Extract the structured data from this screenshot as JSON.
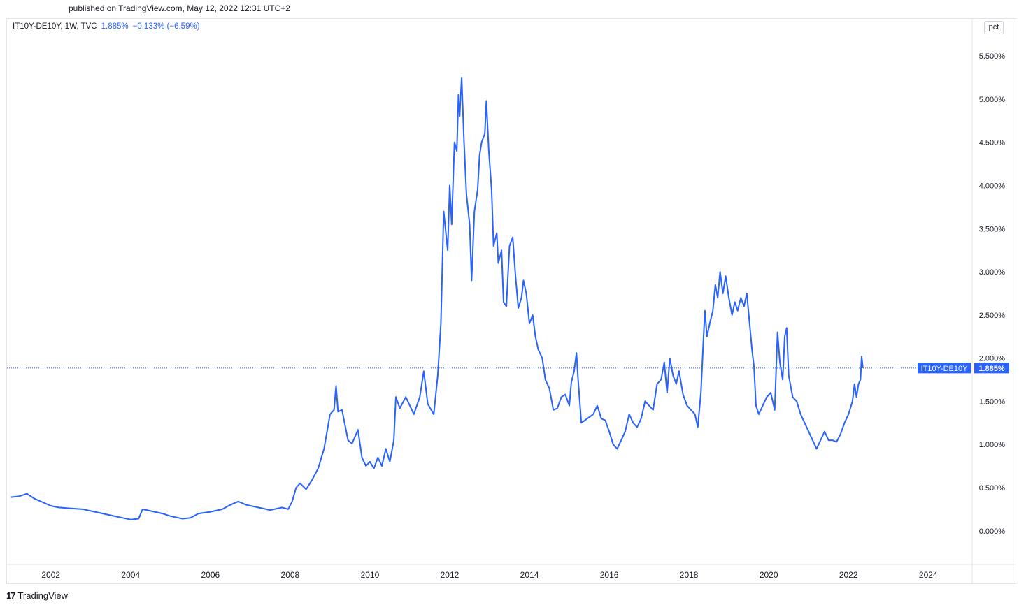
{
  "header": {
    "published": "published on TradingView.com, May 12, 2022 12:31 UTC+2"
  },
  "legend": {
    "symbol": "IT10Y-DE10Y, 1W, TVC",
    "value": "1.885%",
    "change": "−0.133% (−6.59%)"
  },
  "unit_button": {
    "label": "pct"
  },
  "footer": {
    "brand": "TradingView",
    "logo_icon": "tradingview-logo-icon"
  },
  "colors": {
    "line": "#2962ff",
    "axis_text": "#131722",
    "label_bg": "#2962ff",
    "border": "#e0e3eb"
  },
  "chart_data": {
    "type": "line",
    "title": "",
    "xlabel": "",
    "ylabel": "",
    "x_tick_labels": [
      "2002",
      "2004",
      "2006",
      "2008",
      "2010",
      "2012",
      "2014",
      "2016",
      "2018",
      "2020",
      "2022",
      "2024"
    ],
    "y_tick_labels": [
      "0.000%",
      "0.500%",
      "1.000%",
      "1.500%",
      "2.000%",
      "2.500%",
      "3.000%",
      "3.500%",
      "4.000%",
      "4.500%",
      "5.000%",
      "5.500%"
    ],
    "y_ticks": [
      0,
      0.5,
      1.0,
      1.5,
      2.0,
      2.5,
      3.0,
      3.5,
      4.0,
      4.5,
      5.0,
      5.5
    ],
    "x_range": [
      2000.9,
      2025.1
    ],
    "ylim": [
      -0.39,
      5.93
    ],
    "grid": false,
    "last_value": 1.885,
    "last_value_label": "1.885%",
    "series": [
      {
        "name": "IT10Y-DE10Y",
        "points": [
          [
            2001.0,
            0.39
          ],
          [
            2001.2,
            0.4
          ],
          [
            2001.4,
            0.43
          ],
          [
            2001.6,
            0.37
          ],
          [
            2001.8,
            0.33
          ],
          [
            2002.0,
            0.29
          ],
          [
            2002.2,
            0.27
          ],
          [
            2002.5,
            0.26
          ],
          [
            2002.8,
            0.25
          ],
          [
            2003.0,
            0.23
          ],
          [
            2003.3,
            0.2
          ],
          [
            2003.5,
            0.18
          ],
          [
            2003.8,
            0.15
          ],
          [
            2004.0,
            0.13
          ],
          [
            2004.2,
            0.14
          ],
          [
            2004.3,
            0.25
          ],
          [
            2004.5,
            0.23
          ],
          [
            2004.8,
            0.2
          ],
          [
            2005.0,
            0.17
          ],
          [
            2005.3,
            0.14
          ],
          [
            2005.5,
            0.15
          ],
          [
            2005.7,
            0.2
          ],
          [
            2006.0,
            0.22
          ],
          [
            2006.3,
            0.25
          ],
          [
            2006.5,
            0.3
          ],
          [
            2006.7,
            0.34
          ],
          [
            2006.9,
            0.3
          ],
          [
            2007.2,
            0.27
          ],
          [
            2007.5,
            0.24
          ],
          [
            2007.8,
            0.27
          ],
          [
            2007.95,
            0.25
          ],
          [
            2008.05,
            0.34
          ],
          [
            2008.15,
            0.5
          ],
          [
            2008.25,
            0.55
          ],
          [
            2008.4,
            0.48
          ],
          [
            2008.55,
            0.59
          ],
          [
            2008.7,
            0.72
          ],
          [
            2008.85,
            0.95
          ],
          [
            2009.0,
            1.35
          ],
          [
            2009.1,
            1.4
          ],
          [
            2009.15,
            1.68
          ],
          [
            2009.2,
            1.38
          ],
          [
            2009.3,
            1.4
          ],
          [
            2009.45,
            1.05
          ],
          [
            2009.55,
            1.01
          ],
          [
            2009.7,
            1.17
          ],
          [
            2009.8,
            0.85
          ],
          [
            2009.9,
            0.75
          ],
          [
            2010.0,
            0.8
          ],
          [
            2010.1,
            0.72
          ],
          [
            2010.2,
            0.85
          ],
          [
            2010.3,
            0.75
          ],
          [
            2010.4,
            0.95
          ],
          [
            2010.5,
            0.8
          ],
          [
            2010.6,
            1.05
          ],
          [
            2010.65,
            1.55
          ],
          [
            2010.75,
            1.42
          ],
          [
            2010.9,
            1.55
          ],
          [
            2011.0,
            1.45
          ],
          [
            2011.1,
            1.35
          ],
          [
            2011.25,
            1.55
          ],
          [
            2011.35,
            1.85
          ],
          [
            2011.45,
            1.47
          ],
          [
            2011.6,
            1.35
          ],
          [
            2011.7,
            1.8
          ],
          [
            2011.78,
            2.4
          ],
          [
            2011.85,
            3.7
          ],
          [
            2011.95,
            3.25
          ],
          [
            2012.0,
            4.0
          ],
          [
            2012.05,
            3.55
          ],
          [
            2012.12,
            4.5
          ],
          [
            2012.18,
            4.4
          ],
          [
            2012.22,
            5.05
          ],
          [
            2012.25,
            4.8
          ],
          [
            2012.3,
            5.25
          ],
          [
            2012.36,
            4.5
          ],
          [
            2012.42,
            3.9
          ],
          [
            2012.5,
            3.55
          ],
          [
            2012.55,
            2.9
          ],
          [
            2012.62,
            3.7
          ],
          [
            2012.7,
            3.95
          ],
          [
            2012.75,
            4.35
          ],
          [
            2012.8,
            4.5
          ],
          [
            2012.88,
            4.6
          ],
          [
            2012.92,
            4.98
          ],
          [
            2012.98,
            4.4
          ],
          [
            2013.05,
            3.95
          ],
          [
            2013.1,
            3.3
          ],
          [
            2013.18,
            3.45
          ],
          [
            2013.22,
            3.1
          ],
          [
            2013.3,
            3.25
          ],
          [
            2013.35,
            2.65
          ],
          [
            2013.42,
            2.6
          ],
          [
            2013.5,
            3.3
          ],
          [
            2013.58,
            3.4
          ],
          [
            2013.65,
            2.95
          ],
          [
            2013.72,
            2.58
          ],
          [
            2013.8,
            2.7
          ],
          [
            2013.85,
            2.9
          ],
          [
            2013.92,
            2.75
          ],
          [
            2014.0,
            2.4
          ],
          [
            2014.08,
            2.5
          ],
          [
            2014.15,
            2.25
          ],
          [
            2014.22,
            2.1
          ],
          [
            2014.32,
            2.0
          ],
          [
            2014.4,
            1.75
          ],
          [
            2014.5,
            1.65
          ],
          [
            2014.6,
            1.4
          ],
          [
            2014.7,
            1.42
          ],
          [
            2014.8,
            1.55
          ],
          [
            2014.9,
            1.58
          ],
          [
            2015.0,
            1.45
          ],
          [
            2015.05,
            1.72
          ],
          [
            2015.12,
            1.85
          ],
          [
            2015.18,
            2.06
          ],
          [
            2015.22,
            1.75
          ],
          [
            2015.3,
            1.25
          ],
          [
            2015.45,
            1.3
          ],
          [
            2015.6,
            1.35
          ],
          [
            2015.7,
            1.45
          ],
          [
            2015.8,
            1.3
          ],
          [
            2015.9,
            1.28
          ],
          [
            2016.0,
            1.15
          ],
          [
            2016.1,
            1.0
          ],
          [
            2016.2,
            0.95
          ],
          [
            2016.3,
            1.05
          ],
          [
            2016.4,
            1.15
          ],
          [
            2016.5,
            1.35
          ],
          [
            2016.6,
            1.25
          ],
          [
            2016.7,
            1.2
          ],
          [
            2016.8,
            1.3
          ],
          [
            2016.9,
            1.5
          ],
          [
            2017.0,
            1.45
          ],
          [
            2017.1,
            1.4
          ],
          [
            2017.2,
            1.7
          ],
          [
            2017.3,
            1.75
          ],
          [
            2017.38,
            1.95
          ],
          [
            2017.45,
            1.6
          ],
          [
            2017.52,
            2.0
          ],
          [
            2017.6,
            1.8
          ],
          [
            2017.68,
            1.7
          ],
          [
            2017.75,
            1.85
          ],
          [
            2017.85,
            1.58
          ],
          [
            2017.95,
            1.45
          ],
          [
            2018.05,
            1.4
          ],
          [
            2018.15,
            1.35
          ],
          [
            2018.22,
            1.2
          ],
          [
            2018.3,
            1.6
          ],
          [
            2018.36,
            2.2
          ],
          [
            2018.4,
            2.55
          ],
          [
            2018.45,
            2.25
          ],
          [
            2018.52,
            2.4
          ],
          [
            2018.6,
            2.55
          ],
          [
            2018.66,
            2.85
          ],
          [
            2018.72,
            2.7
          ],
          [
            2018.78,
            3.0
          ],
          [
            2018.85,
            2.75
          ],
          [
            2018.92,
            2.95
          ],
          [
            2019.0,
            2.7
          ],
          [
            2019.08,
            2.5
          ],
          [
            2019.15,
            2.65
          ],
          [
            2019.22,
            2.55
          ],
          [
            2019.3,
            2.7
          ],
          [
            2019.38,
            2.6
          ],
          [
            2019.45,
            2.75
          ],
          [
            2019.52,
            2.4
          ],
          [
            2019.58,
            2.1
          ],
          [
            2019.63,
            1.9
          ],
          [
            2019.68,
            1.45
          ],
          [
            2019.75,
            1.35
          ],
          [
            2019.85,
            1.45
          ],
          [
            2019.95,
            1.55
          ],
          [
            2020.05,
            1.6
          ],
          [
            2020.15,
            1.4
          ],
          [
            2020.22,
            2.3
          ],
          [
            2020.28,
            1.95
          ],
          [
            2020.35,
            1.75
          ],
          [
            2020.4,
            2.25
          ],
          [
            2020.45,
            2.35
          ],
          [
            2020.5,
            1.8
          ],
          [
            2020.6,
            1.55
          ],
          [
            2020.7,
            1.5
          ],
          [
            2020.8,
            1.35
          ],
          [
            2020.9,
            1.25
          ],
          [
            2021.0,
            1.15
          ],
          [
            2021.1,
            1.05
          ],
          [
            2021.2,
            0.95
          ],
          [
            2021.3,
            1.05
          ],
          [
            2021.4,
            1.15
          ],
          [
            2021.5,
            1.05
          ],
          [
            2021.6,
            1.05
          ],
          [
            2021.7,
            1.03
          ],
          [
            2021.8,
            1.12
          ],
          [
            2021.9,
            1.25
          ],
          [
            2022.0,
            1.35
          ],
          [
            2022.1,
            1.5
          ],
          [
            2022.15,
            1.7
          ],
          [
            2022.2,
            1.55
          ],
          [
            2022.25,
            1.7
          ],
          [
            2022.3,
            1.75
          ],
          [
            2022.33,
            2.02
          ],
          [
            2022.36,
            1.885
          ]
        ]
      }
    ]
  }
}
